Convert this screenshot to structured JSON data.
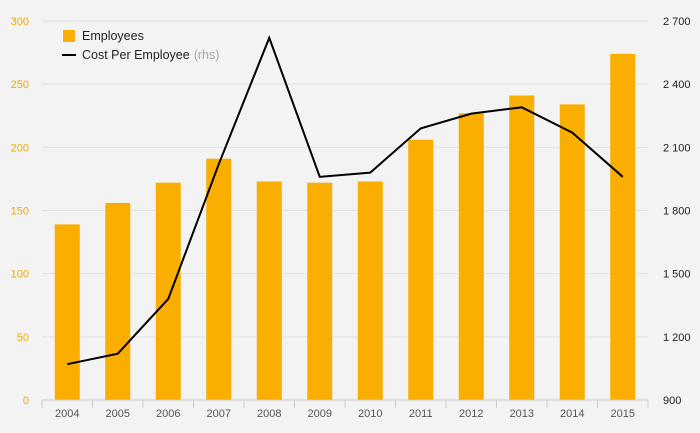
{
  "chart_data": {
    "type": "bar",
    "categories": [
      "2004",
      "2005",
      "2006",
      "2007",
      "2008",
      "2009",
      "2010",
      "2011",
      "2012",
      "2013",
      "2014",
      "2015"
    ],
    "series": [
      {
        "name": "Employees",
        "type": "bar",
        "axis": "left",
        "color": "#f9ae00",
        "values": [
          139,
          156,
          172,
          191,
          173,
          172,
          173,
          206,
          227,
          241,
          234,
          274
        ]
      },
      {
        "name": "Cost Per Employee",
        "name_suffix": "(rhs)",
        "type": "line",
        "axis": "right",
        "color": "#000000",
        "values": [
          1070,
          1120,
          1380,
          2020,
          2620,
          1960,
          1980,
          2190,
          2260,
          2290,
          2170,
          1960
        ]
      }
    ],
    "y_left": {
      "lim": [
        0,
        300
      ],
      "ticks": [
        0,
        50,
        100,
        150,
        200,
        250,
        300
      ],
      "tick_labels": [
        "0",
        "50",
        "100",
        "150",
        "200",
        "250",
        "300"
      ],
      "color": "#f2a900"
    },
    "y_right": {
      "lim": [
        900,
        2700
      ],
      "ticks": [
        900,
        1200,
        1500,
        1800,
        2100,
        2400,
        2700
      ],
      "tick_labels": [
        "900",
        "1 200",
        "1 500",
        "1 800",
        "2 100",
        "2 400",
        "2 700"
      ],
      "color": "#222222"
    },
    "grid": true,
    "legend": "top-left",
    "title": "",
    "xlabel": "",
    "ylabel": ""
  }
}
